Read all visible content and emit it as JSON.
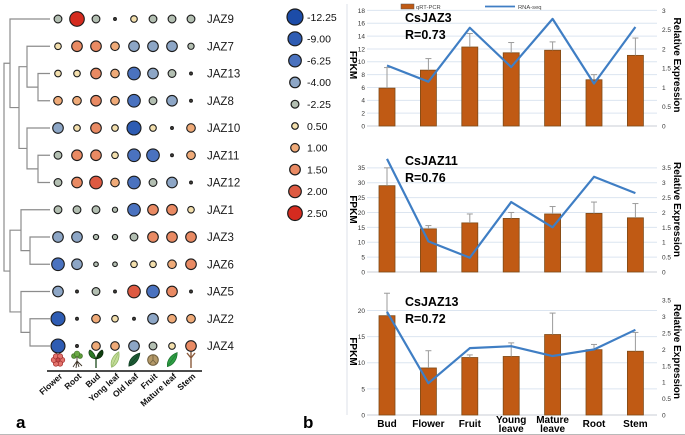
{
  "panel_a": {
    "label": "a",
    "tissue_icons": [
      "flower-icon",
      "root-icon",
      "bud-icon",
      "young-leaf-icon",
      "old-leaf-icon",
      "fruit-icon",
      "mature-leaf-icon",
      "stem-icon"
    ],
    "dendrogram": [
      {
        "a": "L2",
        "b": "L3",
        "x": 38
      },
      {
        "a": "L1",
        "b": "N0",
        "x": 27
      },
      {
        "a": "L5",
        "b": "L6",
        "x": 38
      },
      {
        "a": "L4",
        "b": "N2",
        "x": 27
      },
      {
        "a": "N1",
        "b": "N3",
        "x": 19
      },
      {
        "a": "L0",
        "b": "N4",
        "x": 10
      },
      {
        "a": "L8",
        "b": "L9",
        "x": 30
      },
      {
        "a": "L7",
        "b": "N6",
        "x": 21
      },
      {
        "a": "L11",
        "b": "L12",
        "x": 30
      },
      {
        "a": "L10",
        "b": "N8",
        "x": 21
      },
      {
        "a": "N7",
        "b": "N9",
        "x": 10
      },
      {
        "a": "N5",
        "b": "N10",
        "x": 4
      }
    ]
  },
  "panel_b": {
    "label": "b",
    "legend": {
      "bar_label": "qRT-PCR",
      "line_label": "RNA-seq"
    }
  },
  "colors": {
    "bar": "#c05a14",
    "bar_border": "#7d4a17",
    "line": "#3f7ec4",
    "grid": "#dce5f0",
    "baseline": "#c9ced6",
    "error": "#9b9b9b",
    "dendrogram": "#8c8c8c",
    "dot_stroke": "#1b1b1b"
  },
  "chart_data": [
    {
      "type": "heatmap",
      "subtype": "bubble-matrix",
      "rows": [
        "JAZ9",
        "JAZ7",
        "JAZ13",
        "JAZ8",
        "JAZ10",
        "JAZ11",
        "JAZ12",
        "JAZ1",
        "JAZ3",
        "JAZ6",
        "JAZ5",
        "JAZ2",
        "JAZ4"
      ],
      "columns": [
        "Flower",
        "Root",
        "Bud",
        "Yong leaf",
        "Old leaf",
        "Fruit",
        "Mature leaf",
        "Stem"
      ],
      "values": [
        [
          -2.25,
          2.5,
          -2.25,
          0,
          0.5,
          -2.25,
          -2.25,
          -2.25
        ],
        [
          0.5,
          1.5,
          1.5,
          1.0,
          -4,
          -4,
          -4,
          -1.5
        ],
        [
          0.5,
          0.5,
          1.5,
          1.0,
          -6.25,
          -4,
          -2.25,
          0
        ],
        [
          1.0,
          1.0,
          1.5,
          1.0,
          -6.25,
          -2.25,
          -4,
          0
        ],
        [
          -4,
          0.5,
          1.5,
          0.5,
          -9,
          0.5,
          0.3,
          1.0
        ],
        [
          -2.25,
          1.5,
          1.5,
          0.5,
          -6.25,
          -6.25,
          0,
          1.0
        ],
        [
          -2.25,
          1.5,
          2.0,
          1.0,
          -6.25,
          -2.25,
          -4,
          0
        ],
        [
          -2.25,
          -2.25,
          -2.25,
          -1.0,
          -6.25,
          1.5,
          1.5,
          0.5
        ],
        [
          -4,
          -4,
          -1.0,
          -1.0,
          -2.25,
          1.5,
          1.5,
          1.5
        ],
        [
          -6.25,
          -4,
          -0.7,
          -0.7,
          0.5,
          0.5,
          1.0,
          1.5
        ],
        [
          -4,
          0,
          -2.25,
          0.3,
          2.0,
          -6.25,
          1.5,
          0.3
        ],
        [
          -9,
          0.3,
          1.0,
          0.5,
          0.3,
          -4,
          1.0,
          1.0
        ],
        [
          -9,
          0,
          1.0,
          1.0,
          -4,
          -2.25,
          0.5,
          1.5
        ]
      ],
      "size_color_legend": {
        "values": [
          -12.25,
          -9,
          -6.25,
          -4,
          -2.25,
          0.5,
          1,
          1.5,
          2,
          2.5
        ],
        "labels": [
          "-12.25",
          "-9.00",
          "-6.25",
          "-4.00",
          "-2.25",
          "0.50",
          "1.00",
          "1.50",
          "2.00",
          "2.50"
        ],
        "colors": [
          "#1c4ca8",
          "#2e5cb3",
          "#4a72bf",
          "#8da6c6",
          "#b3bfb2",
          "#f3dfad",
          "#efaa78",
          "#e98a63",
          "#de5a42",
          "#d52b1f"
        ],
        "radii": [
          8,
          7,
          6.3,
          5.3,
          3.9,
          3.3,
          4.3,
          5.3,
          6.3,
          7.3
        ]
      }
    },
    {
      "type": "bar",
      "subtype": "bar+line",
      "title": "CsJAZ3",
      "correlation": "R=0.73",
      "categories": [
        "Bud",
        "Flower",
        "Fruit",
        "Young leave",
        "Mature leave",
        "Root",
        "Stem"
      ],
      "series": [
        {
          "name": "qRT-PCR",
          "mark": "bar",
          "axis": "left",
          "values": [
            5.9,
            8.7,
            12.3,
            11.4,
            11.8,
            7.2,
            11.0
          ],
          "errors": [
            3.2,
            1.8,
            2.1,
            1.6,
            1.3,
            0.8,
            2.7
          ]
        },
        {
          "name": "RNA-seq",
          "mark": "line",
          "axis": "right",
          "values": [
            1.57,
            1.15,
            2.55,
            1.53,
            2.78,
            1.1,
            2.57
          ]
        }
      ],
      "left_axis": {
        "label": "FPKM",
        "ticks": [
          0,
          2,
          4,
          6,
          8,
          10,
          12,
          14,
          16,
          18
        ],
        "plot_max": 19
      },
      "right_axis": {
        "label": "Relative Expression",
        "ticks": [
          0,
          0.5,
          1,
          1.5,
          2,
          2.5,
          3
        ],
        "plot_max": 3.1667
      }
    },
    {
      "type": "bar",
      "subtype": "bar+line",
      "title": "CsJAZ11",
      "correlation": "R=0.76",
      "categories": [
        "Bud",
        "Flower",
        "Fruit",
        "Young leave",
        "Mature leave",
        "Root",
        "Stem"
      ],
      "series": [
        {
          "name": "qRT-PCR",
          "mark": "bar",
          "axis": "left",
          "values": [
            29,
            14.5,
            16.5,
            18,
            19.5,
            19.7,
            18.2
          ],
          "errors": [
            6,
            1.1,
            3,
            2,
            2.5,
            3.8,
            4.8
          ]
        },
        {
          "name": "RNA-seq",
          "mark": "line",
          "axis": "right",
          "values": [
            3.8,
            1.03,
            0.48,
            2.35,
            1.5,
            3.2,
            2.65
          ]
        }
      ],
      "left_axis": {
        "label": "FPKM",
        "ticks": [
          0,
          5,
          10,
          15,
          20,
          25,
          30,
          35
        ],
        "plot_max": 42
      },
      "right_axis": {
        "label": "Relative Expression",
        "ticks": [
          0,
          0.5,
          1,
          1.5,
          2,
          2.5,
          3,
          3.5
        ],
        "plot_max": 4.2
      }
    },
    {
      "type": "bar",
      "subtype": "bar+line",
      "title": "CsJAZ13",
      "correlation": "R=0.72",
      "categories": [
        "Bud",
        "Flower",
        "Fruit",
        "Young leave",
        "Mature leave",
        "Root",
        "Stem"
      ],
      "series": [
        {
          "name": "qRT-PCR",
          "mark": "bar",
          "axis": "left",
          "values": [
            19,
            9,
            11,
            11.2,
            15.4,
            12.5,
            12.2
          ],
          "errors": [
            4.3,
            3.3,
            0.5,
            2.6,
            4.1,
            1.0,
            3.6
          ]
        },
        {
          "name": "RNA-seq",
          "mark": "line",
          "axis": "right",
          "values": [
            3.15,
            0.97,
            2.04,
            2.1,
            1.8,
            2.0,
            2.6
          ]
        }
      ],
      "left_axis": {
        "label": "FPKM",
        "ticks": [
          0,
          5,
          10,
          15,
          20
        ],
        "plot_max": 24.3
      },
      "right_axis": {
        "label": "Relative Expression",
        "ticks": [
          0,
          0.5,
          1,
          1.5,
          2,
          2.5,
          3,
          3.5
        ],
        "plot_max": 3.876
      }
    }
  ]
}
